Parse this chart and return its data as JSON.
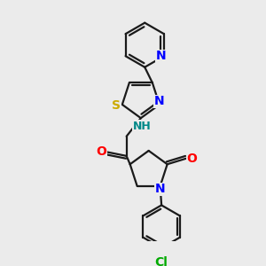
{
  "background_color": "#ebebeb",
  "bond_color": "#1a1a1a",
  "N_color": "#0000ff",
  "O_color": "#ff0000",
  "S_color": "#ccaa00",
  "Cl_color": "#00aa00",
  "NH_color": "#008888",
  "line_width": 1.6,
  "font_size": 10,
  "figsize": [
    3.0,
    3.0
  ],
  "dpi": 100,
  "xlim": [
    0,
    10
  ],
  "ylim": [
    0,
    10
  ]
}
